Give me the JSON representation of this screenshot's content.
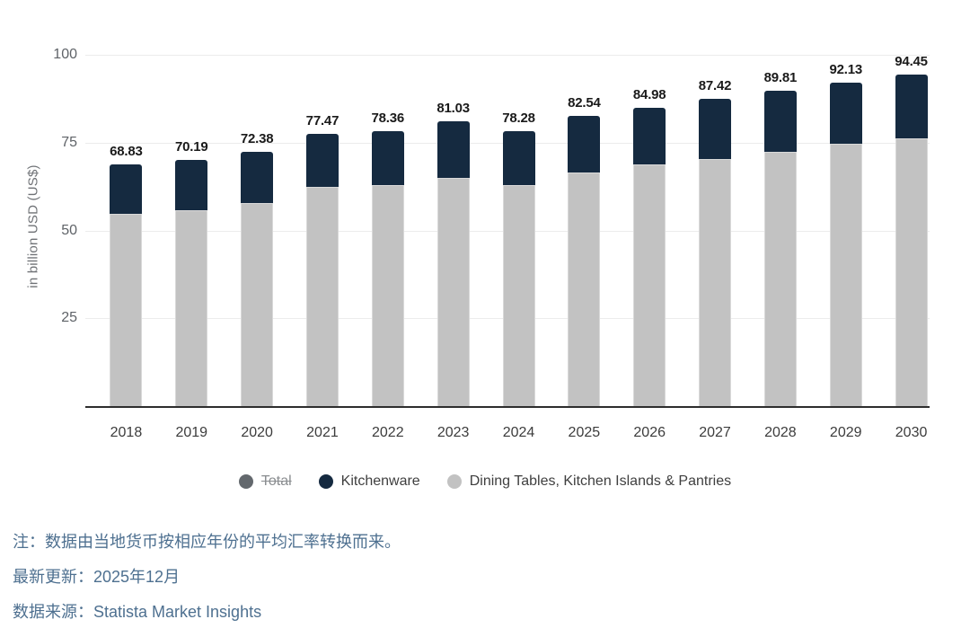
{
  "chart_data": {
    "type": "bar",
    "stacked": true,
    "title": "",
    "xlabel": "",
    "ylabel": "in billion USD (US$)",
    "ylim": [
      0,
      100
    ],
    "yticks": [
      25,
      50,
      75,
      100
    ],
    "grid": true,
    "legend_position": "bottom",
    "categories": [
      "2018",
      "2019",
      "2020",
      "2021",
      "2022",
      "2023",
      "2024",
      "2025",
      "2026",
      "2027",
      "2028",
      "2029",
      "2030"
    ],
    "series": [
      {
        "name": "Kitchenware",
        "color": "#152a40",
        "values": [
          14.13,
          14.49,
          14.58,
          15.17,
          15.56,
          16.13,
          15.48,
          16.14,
          16.28,
          17.12,
          17.41,
          17.43,
          18.25
        ]
      },
      {
        "name": "Dining Tables, Kitchen Islands & Pantries",
        "color": "#c2c2c2",
        "values": [
          54.7,
          55.7,
          57.8,
          62.3,
          62.8,
          64.9,
          62.8,
          66.4,
          68.7,
          70.3,
          72.4,
          74.7,
          76.2
        ]
      }
    ],
    "totals": [
      68.83,
      70.19,
      72.38,
      77.47,
      78.36,
      81.03,
      78.28,
      82.54,
      84.98,
      87.42,
      89.81,
      92.13,
      94.45
    ],
    "legend": [
      {
        "label": "Total",
        "color": "#63686d",
        "hidden": true
      },
      {
        "label": "Kitchenware",
        "color": "#152a40",
        "hidden": false
      },
      {
        "label": "Dining Tables, Kitchen Islands & Pantries",
        "color": "#c2c2c2",
        "hidden": false
      }
    ]
  },
  "footer": {
    "note": "注：数据由当地货币按相应年份的平均汇率转换而来。",
    "last_update": "最新更新：2025年12月",
    "source": "数据来源：Statista Market Insights"
  }
}
